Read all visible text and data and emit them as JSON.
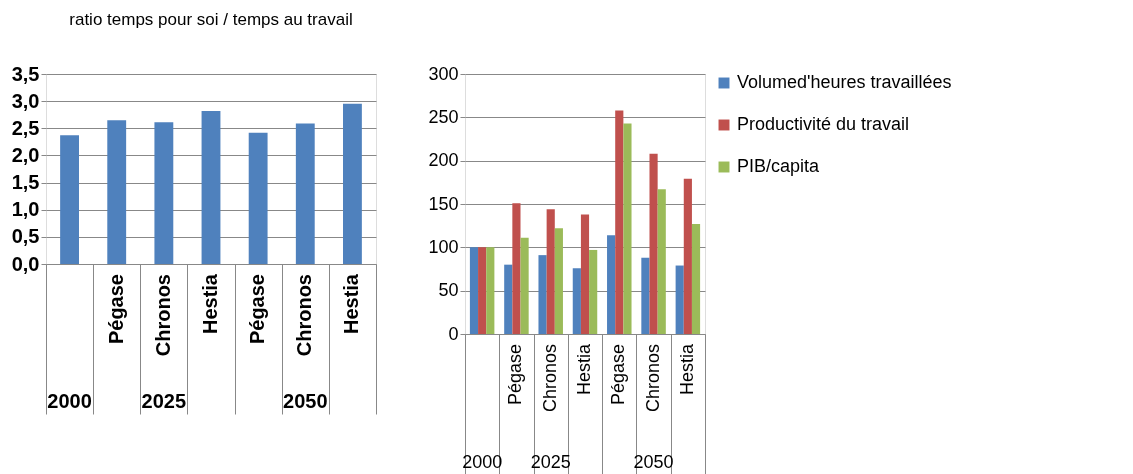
{
  "chart_data": [
    {
      "type": "bar",
      "title": "ratio temps pour soi / temps au travail",
      "categories": [
        null,
        "Pégase",
        "Chronos",
        "Hestia",
        "Pégase",
        "Chronos",
        "Hestia"
      ],
      "values": [
        2.37,
        2.65,
        2.61,
        2.82,
        2.42,
        2.59,
        2.95
      ],
      "color": "#4f81bd",
      "ylim": [
        0,
        3.5
      ],
      "yticks": [
        {
          "value": 0,
          "label": "0,0"
        },
        {
          "value": 0.5,
          "label": "0,5"
        },
        {
          "value": 1,
          "label": "1,0"
        },
        {
          "value": 1.5,
          "label": "1,5"
        },
        {
          "value": 2,
          "label": "2,0"
        },
        {
          "value": 2.5,
          "label": "2,5"
        },
        {
          "value": 3,
          "label": "3,0"
        },
        {
          "value": 3.5,
          "label": "3,5"
        }
      ],
      "grid": "y",
      "annotations": [
        "2000",
        "2025",
        "2050"
      ]
    },
    {
      "type": "bar",
      "categories": [
        null,
        "Pégase",
        "Chronos",
        "Hestia",
        "Pégase",
        "Chronos",
        "Hestia"
      ],
      "series": [
        {
          "name": "Volumed'heures travaillées",
          "color": "#4f81bd",
          "values": [
            100,
            80,
            91,
            76,
            114,
            88,
            79
          ]
        },
        {
          "name": "Productivité du travail",
          "color": "#c0504d",
          "values": [
            100,
            151,
            144,
            138,
            258,
            208,
            179
          ]
        },
        {
          "name": "PIB/capita",
          "color": "#9bbb59",
          "values": [
            100,
            111,
            122,
            97,
            243,
            167,
            127
          ]
        }
      ],
      "ylim": [
        0,
        300
      ],
      "yticks": [
        0,
        50,
        100,
        150,
        200,
        250,
        300
      ],
      "grid": "y",
      "legend": "right",
      "annotations": [
        "2000",
        "2025",
        "2050"
      ]
    }
  ]
}
